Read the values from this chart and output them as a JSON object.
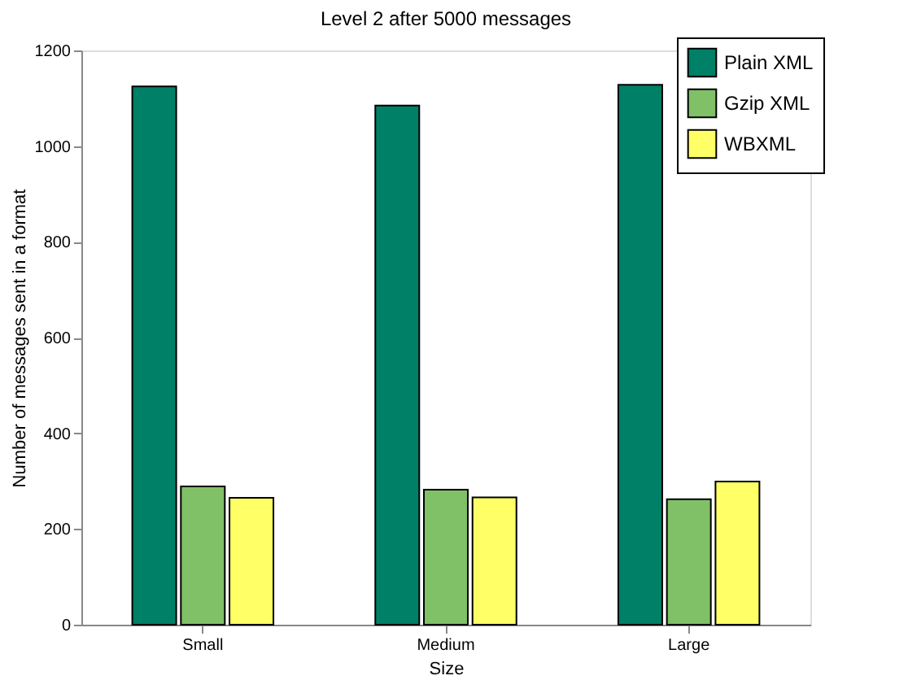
{
  "chart_data": {
    "type": "bar",
    "title": "Level 2 after 5000 messages",
    "xlabel": "Size",
    "ylabel": "Number of messages sent in a format",
    "categories": [
      "Small",
      "Medium",
      "Large"
    ],
    "series": [
      {
        "name": "Plain XML",
        "color": "#008066",
        "values": [
          1125,
          1085,
          1128
        ]
      },
      {
        "name": "Gzip XML",
        "color": "#80c066",
        "values": [
          289,
          282,
          262
        ]
      },
      {
        "name": "WBXML",
        "color": "#ffff66",
        "values": [
          265,
          266,
          299
        ]
      }
    ],
    "ylim": [
      0,
      1200
    ],
    "yticks": [
      0,
      200,
      400,
      600,
      800,
      1000,
      1200
    ],
    "grid": false,
    "legend": "top right"
  }
}
